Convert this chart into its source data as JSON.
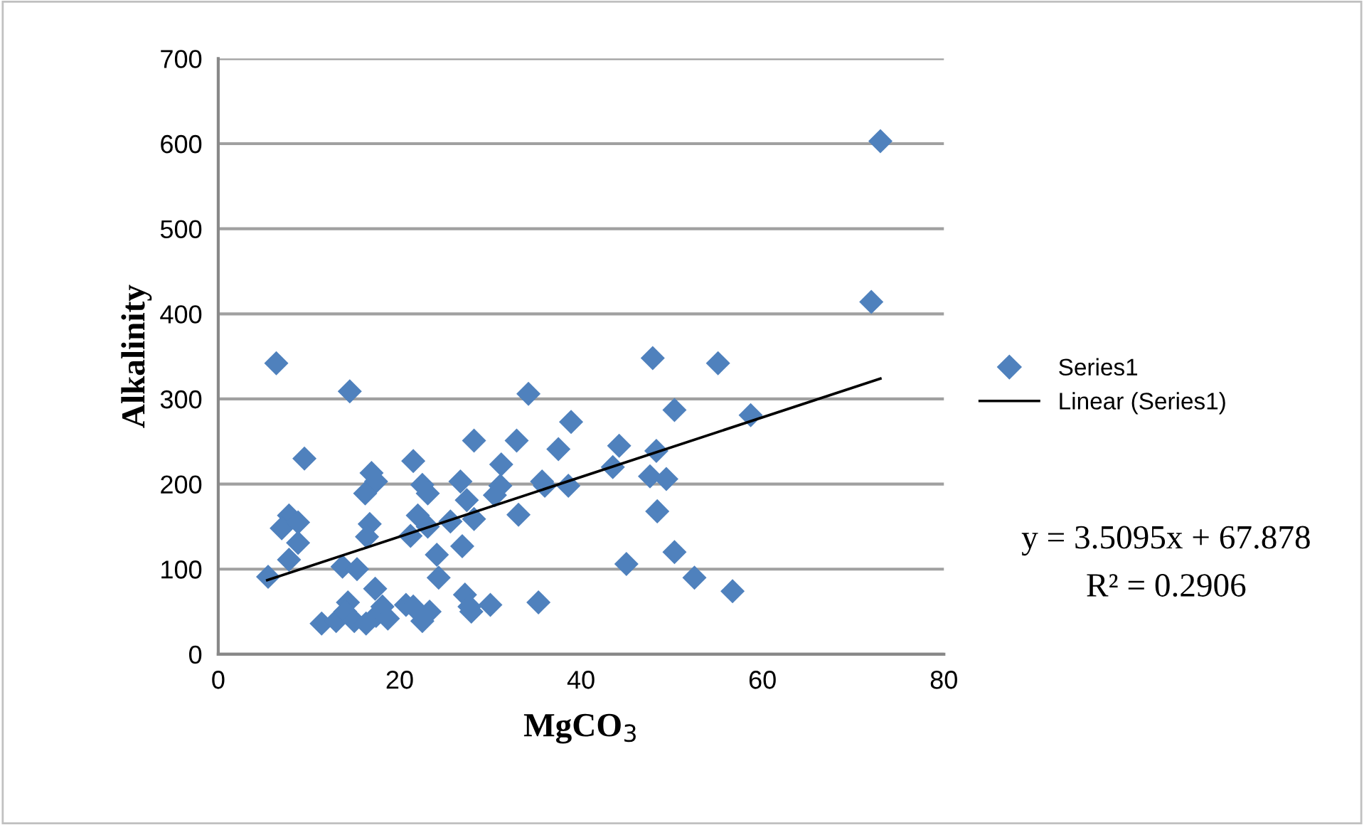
{
  "chart_data": {
    "type": "scatter",
    "xlabel": "MgCO$_{3}$",
    "ylabel": "Alkalinity",
    "xlim": [
      0,
      80
    ],
    "xticks": [
      0,
      20,
      40,
      60,
      80
    ],
    "ylim": [
      0,
      700
    ],
    "yticks": [
      0,
      100,
      200,
      300,
      400,
      500,
      600,
      700
    ],
    "grid": "y",
    "legend": "right",
    "annotations": [
      "y = 3.5095x + 67.878",
      "R² = 0.2906"
    ],
    "series": [
      {
        "name": "Series1",
        "marker": "diamond",
        "color": "#4f81bd",
        "x": [
          14.5,
          9.5,
          16.9,
          17.4,
          16.2,
          21.5,
          22.5,
          23.1,
          26.7,
          27.4,
          28.2,
          7.8,
          7.0,
          8.8,
          8.8,
          7.8,
          5.5,
          16.7,
          16.4,
          22.0,
          21.2,
          23.1,
          24.1,
          25.6,
          26.9,
          24.3,
          13.7,
          15.3,
          17.3,
          27.2,
          27.7,
          11.4,
          13.0,
          14.3,
          14.0,
          15.0,
          16.3,
          17.4,
          18.1,
          18.7,
          20.7,
          22.5,
          23.3,
          21.5,
          47.9,
          55.1,
          34.2,
          50.3,
          38.9,
          32.9,
          37.5,
          31.2,
          44.2,
          43.5,
          48.3,
          47.6,
          49.4,
          35.7,
          36.0,
          38.6,
          31.1,
          30.5,
          28.2,
          33.1,
          48.4,
          45.0,
          50.3,
          52.5,
          56.7,
          27.9,
          30.0,
          35.3,
          73.0,
          72.0,
          58.7,
          6.4
        ],
        "values": [
          309,
          230,
          213,
          203,
          189,
          227,
          199,
          189,
          203,
          181,
          251,
          163,
          148,
          155,
          131,
          111,
          91,
          153,
          138,
          163,
          139,
          150,
          117,
          156,
          127,
          90,
          103,
          100,
          77,
          70,
          56,
          36,
          39,
          61,
          50,
          39,
          36,
          45,
          56,
          42,
          58,
          39,
          50,
          56,
          348,
          342,
          306,
          287,
          273,
          251,
          241,
          223,
          245,
          220,
          239,
          209,
          206,
          203,
          198,
          198,
          198,
          187,
          159,
          164,
          168,
          106,
          120,
          90,
          74,
          50,
          58,
          61,
          603,
          414,
          281,
          342
        ]
      },
      {
        "name": "Linear (Series1)",
        "type": "line",
        "marker": "none",
        "line_style": "solid",
        "color": "#000000",
        "x": [
          5.4,
          73.0
        ],
        "values": [
          87,
          324
        ]
      }
    ]
  }
}
